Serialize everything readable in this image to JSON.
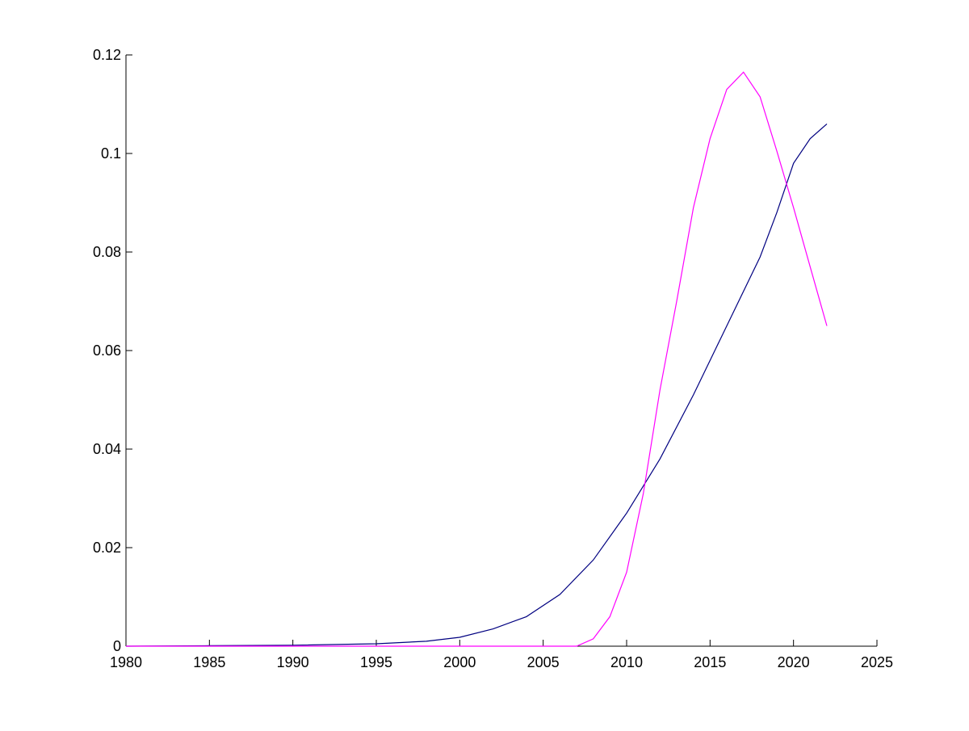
{
  "chart_data": {
    "type": "line",
    "title": "",
    "xlabel": "",
    "ylabel": "",
    "xlim": [
      1980,
      2025
    ],
    "ylim": [
      0,
      0.12
    ],
    "x_ticks": [
      1980,
      1985,
      1990,
      1995,
      2000,
      2005,
      2010,
      2015,
      2020,
      2025
    ],
    "x_tick_labels": [
      "1980",
      "1985",
      "1990",
      "1995",
      "2000",
      "2005",
      "2010",
      "2015",
      "2020",
      "2025"
    ],
    "y_ticks": [
      0,
      0.02,
      0.04,
      0.06,
      0.08,
      0.1,
      0.12
    ],
    "y_tick_labels": [
      "0",
      "0.02",
      "0.04",
      "0.06",
      "0.08",
      "0.1",
      "0.12"
    ],
    "grid": false,
    "legend": "none",
    "series": [
      {
        "color": "#000080",
        "x": [
          1980,
          1985,
          1990,
          1995,
          1998,
          2000,
          2002,
          2004,
          2006,
          2008,
          2010,
          2012,
          2014,
          2016,
          2018,
          2019,
          2020,
          2021,
          2022
        ],
        "y": [
          0.0,
          0.0001,
          0.0002,
          0.0005,
          0.001,
          0.0018,
          0.0035,
          0.006,
          0.0105,
          0.0175,
          0.027,
          0.038,
          0.051,
          0.065,
          0.079,
          0.088,
          0.098,
          0.103,
          0.106
        ]
      },
      {
        "color": "#ff00ff",
        "x": [
          1980,
          2007,
          2008,
          2009,
          2010,
          2011,
          2012,
          2013,
          2014,
          2015,
          2016,
          2017,
          2018,
          2019,
          2020,
          2021,
          2022
        ],
        "y": [
          0.0,
          0.0,
          0.0015,
          0.006,
          0.015,
          0.031,
          0.052,
          0.07,
          0.089,
          0.103,
          0.113,
          0.1165,
          0.1115,
          0.1005,
          0.089,
          0.077,
          0.065
        ]
      }
    ]
  }
}
